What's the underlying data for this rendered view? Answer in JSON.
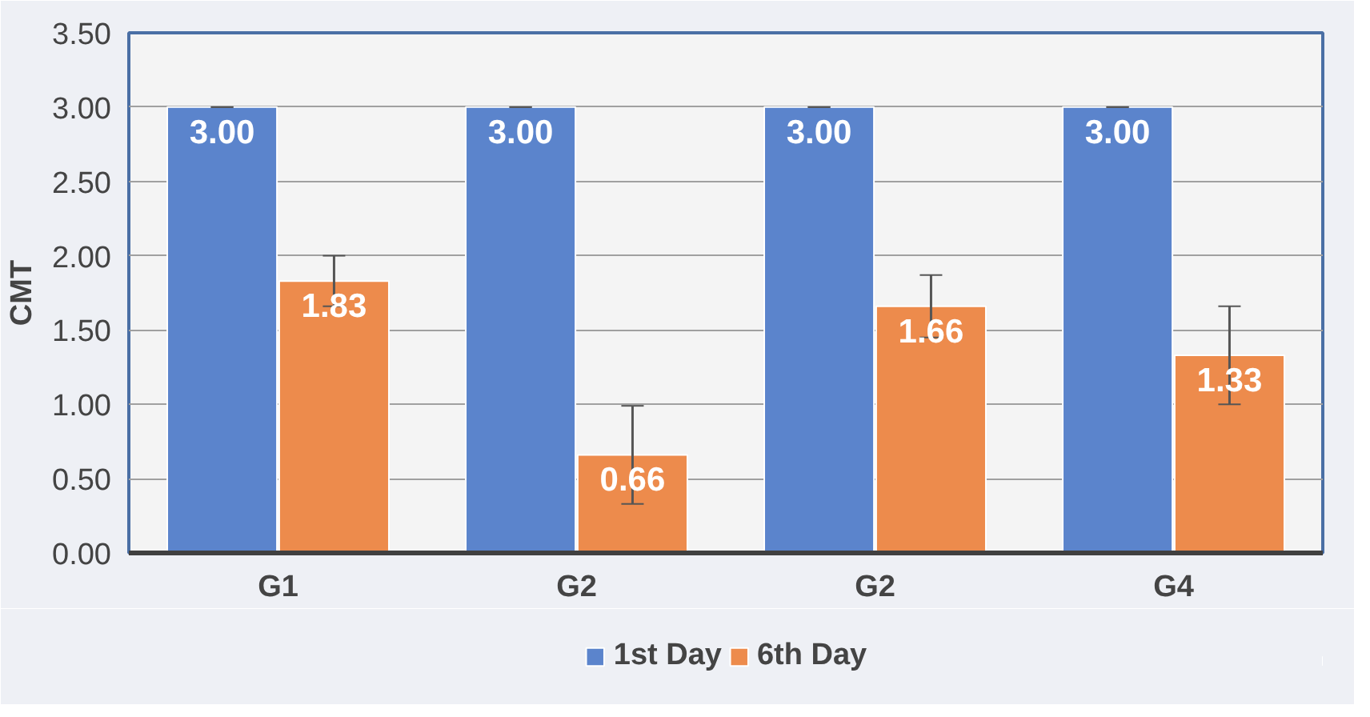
{
  "chart_data": {
    "type": "bar",
    "ylabel": "CMT",
    "categories": [
      "G1",
      "G2",
      "G2",
      "G4"
    ],
    "series": [
      {
        "name": "1st Day",
        "color": "#5b84cc",
        "values": [
          3.0,
          3.0,
          3.0,
          3.0
        ],
        "errors": [
          0,
          0,
          0,
          0
        ],
        "value_labels": [
          "3.00",
          "3.00",
          "3.00",
          "3.00"
        ]
      },
      {
        "name": "6th Day",
        "color": "#ed8b4c",
        "values": [
          1.83,
          0.66,
          1.66,
          1.33
        ],
        "errors": [
          0.17,
          0.33,
          0.21,
          0.33
        ],
        "value_labels": [
          "1.83",
          "0.66",
          "1.66",
          "1.33"
        ]
      }
    ],
    "ylim": [
      0,
      3.5
    ],
    "yticks": [
      {
        "value": 0,
        "label": "0.00"
      },
      {
        "value": 0.5,
        "label": "0.50"
      },
      {
        "value": 1.0,
        "label": "1.00"
      },
      {
        "value": 1.5,
        "label": "1.50"
      },
      {
        "value": 2.0,
        "label": "2.00"
      },
      {
        "value": 2.5,
        "label": "2.50"
      },
      {
        "value": 3.0,
        "label": "3.00"
      },
      {
        "value": 3.5,
        "label": "3.50"
      }
    ],
    "grid": "y",
    "legend": "bottom"
  }
}
